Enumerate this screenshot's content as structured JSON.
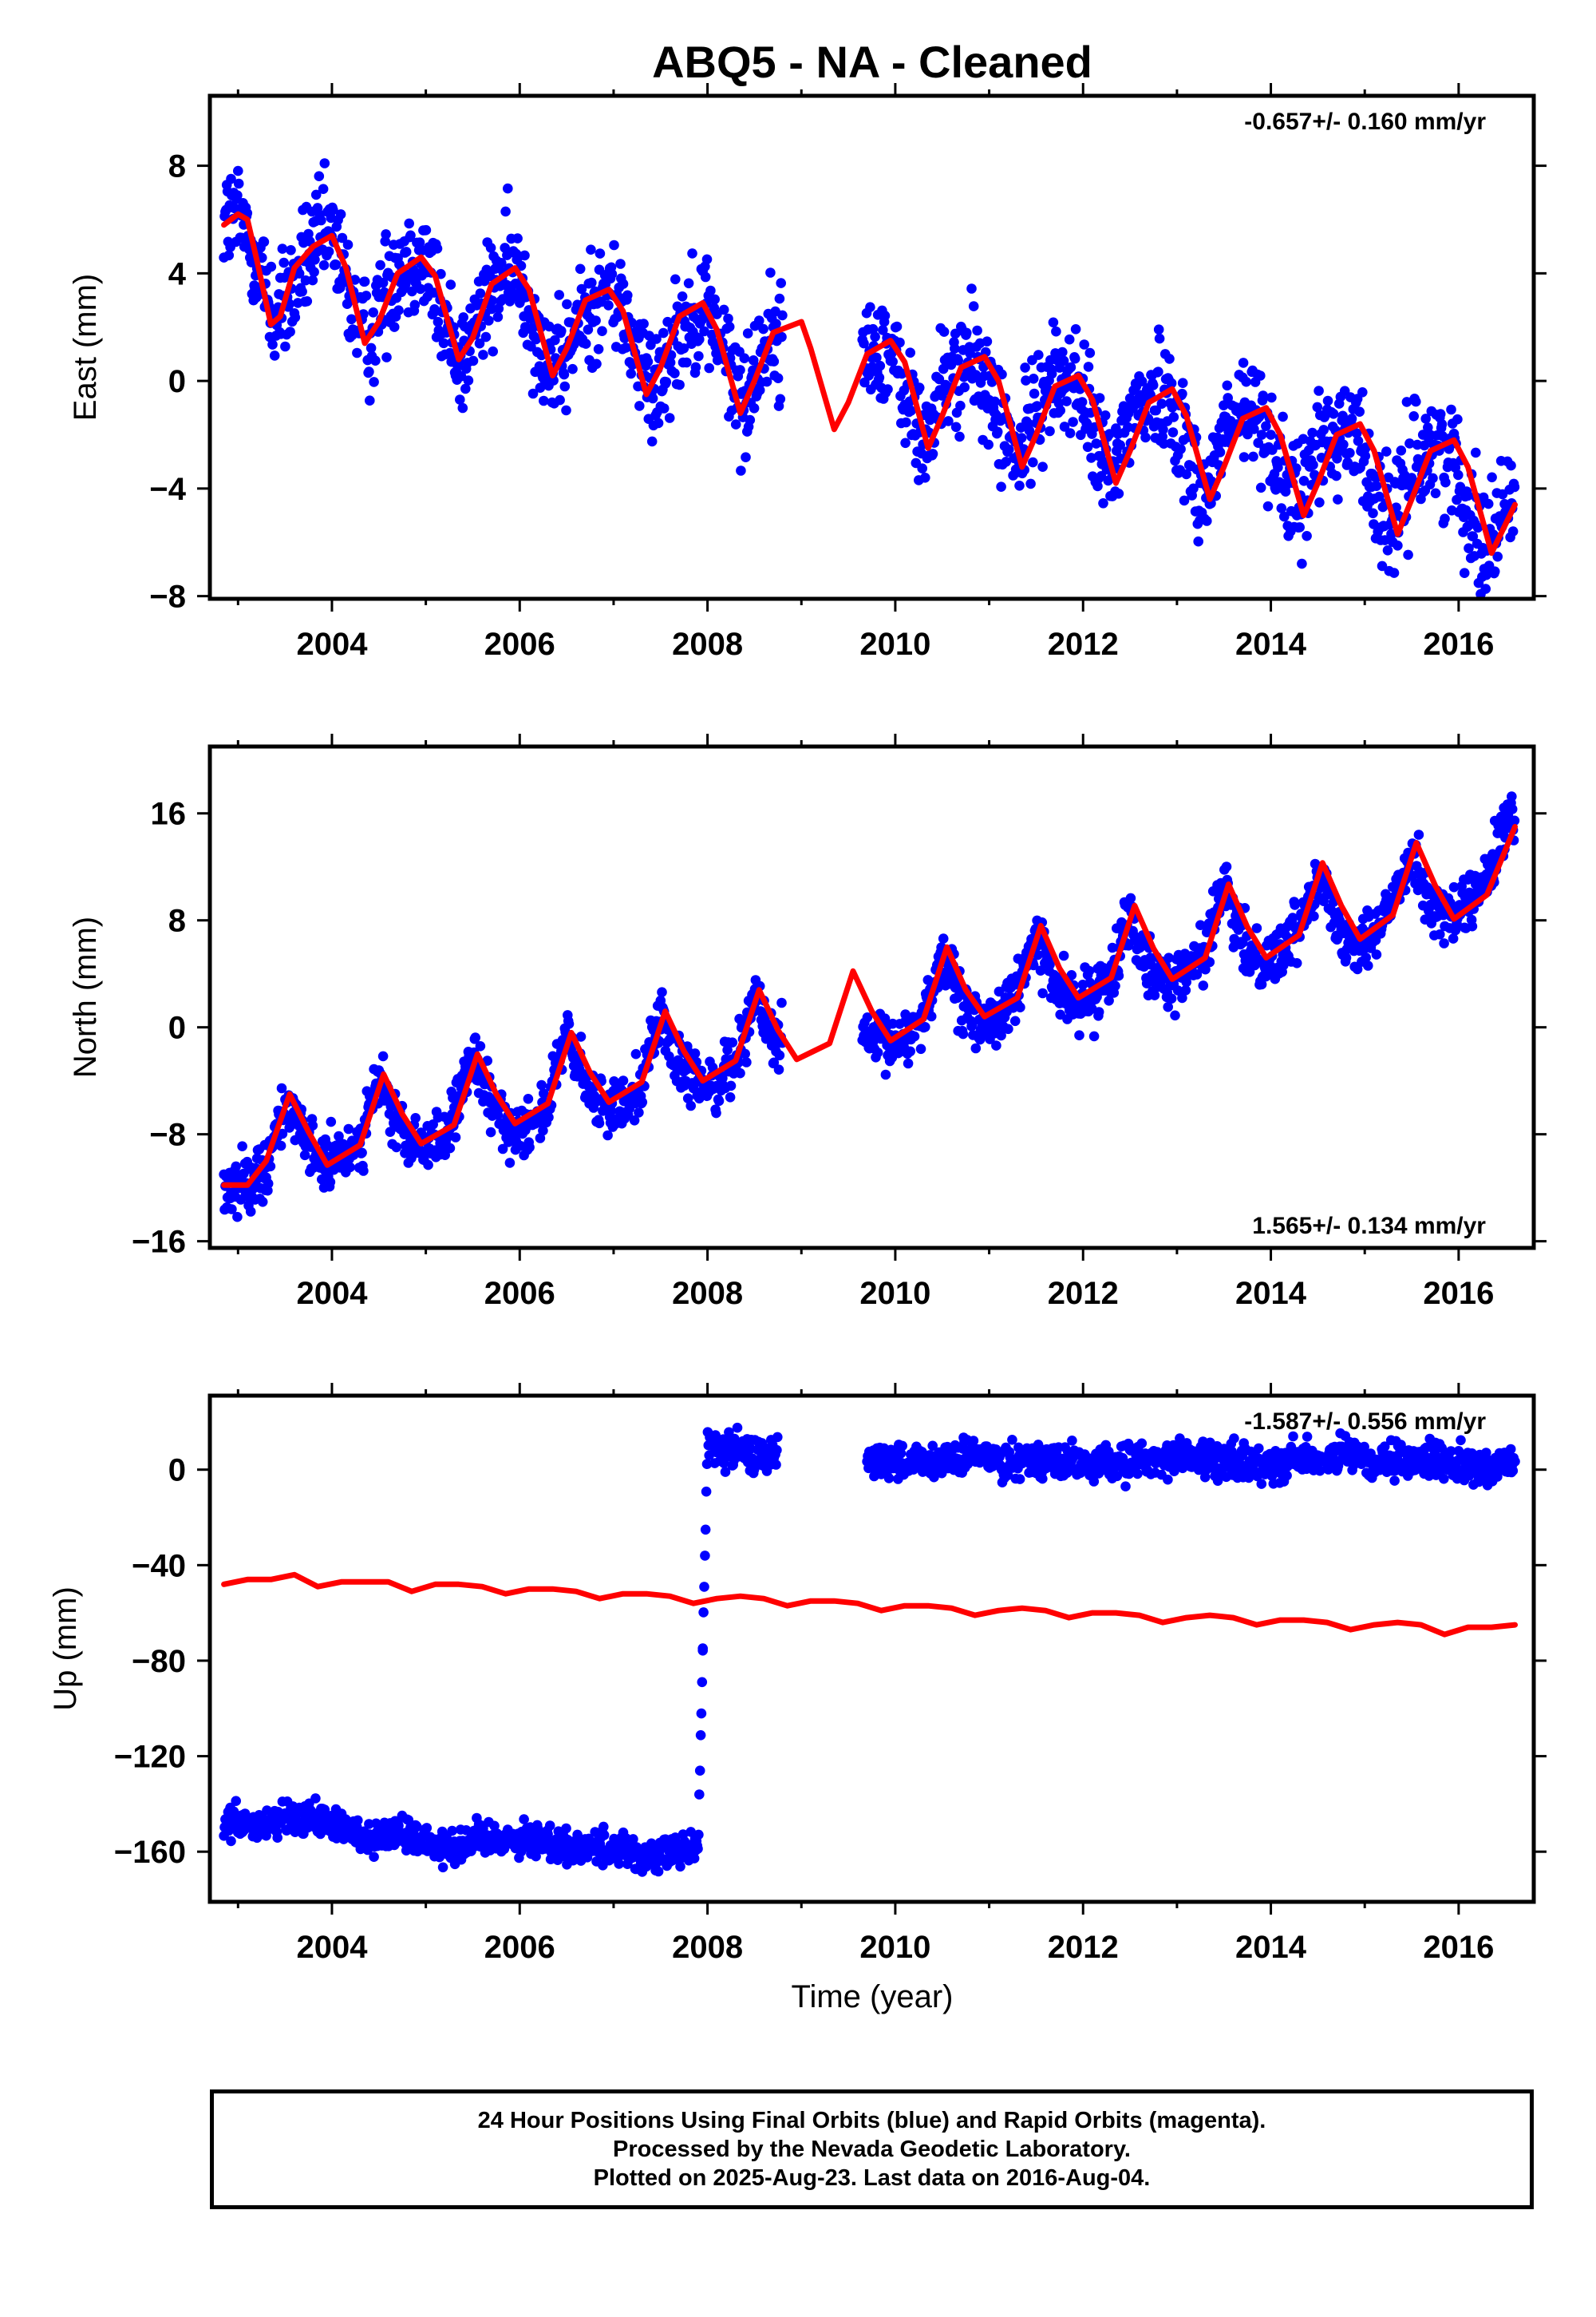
{
  "chart_data": [
    {
      "type": "scatter",
      "title": "ABQ5  - NA - Cleaned",
      "ylabel": "East (mm)",
      "xlabel": "",
      "rate_text": "-0.657+/- 0.160 mm/yr",
      "rate_position": "top-right",
      "xlim": [
        2002.7,
        2016.8
      ],
      "ylim": [
        -8.1,
        10.6
      ],
      "xticks": [
        "2004",
        "2006",
        "2008",
        "2010",
        "2012",
        "2014",
        "2016"
      ],
      "yticks": [
        "-8",
        "-4",
        "0",
        "4",
        "8"
      ],
      "series": [
        {
          "kind": "observations",
          "color": "#0000ff",
          "segments": [
            [
              2002.85,
              2008.8
            ],
            [
              2009.65,
              2016.6
            ]
          ],
          "x": [
            2002.9,
            2003.0,
            2003.2,
            2003.4,
            2003.6,
            2003.8,
            2004.0,
            2004.2,
            2004.4,
            2004.6,
            2004.8,
            2005.0,
            2005.2,
            2005.4,
            2005.6,
            2005.8,
            2006.0,
            2006.2,
            2006.4,
            2006.6,
            2006.8,
            2007.0,
            2007.2,
            2007.4,
            2007.6,
            2007.8,
            2008.0,
            2008.2,
            2008.4,
            2008.6,
            2009.7,
            2009.9,
            2010.1,
            2010.3,
            2010.5,
            2010.7,
            2010.9,
            2011.1,
            2011.3,
            2011.5,
            2011.7,
            2011.9,
            2012.1,
            2012.3,
            2012.5,
            2012.7,
            2012.9,
            2013.1,
            2013.3,
            2013.5,
            2013.7,
            2013.9,
            2014.1,
            2014.3,
            2014.5,
            2014.7,
            2014.9,
            2015.1,
            2015.3,
            2015.5,
            2015.7,
            2015.9,
            2016.1,
            2016.3,
            2016.5
          ],
          "y": [
            6.0,
            6.1,
            4.5,
            2.2,
            3.5,
            5.0,
            5.4,
            3.0,
            1.4,
            3.8,
            4.6,
            4.5,
            2.0,
            0.8,
            2.6,
            3.9,
            4.0,
            1.6,
            0.2,
            1.8,
            3.0,
            3.4,
            1.6,
            -0.5,
            1.2,
            2.5,
            2.8,
            0.8,
            -1.0,
            1.5,
            1.0,
            1.4,
            -0.5,
            -2.4,
            -0.2,
            0.7,
            0.5,
            -1.5,
            -3.1,
            -0.8,
            0.0,
            0.1,
            -1.8,
            -3.7,
            -1.2,
            -0.6,
            -0.4,
            -2.4,
            -4.4,
            -1.8,
            -1.3,
            -1.2,
            -3.4,
            -5.0,
            -2.4,
            -1.9,
            -1.9,
            -4.0,
            -5.7,
            -3.0,
            -2.5,
            -2.6,
            -4.6,
            -6.3,
            -4.6
          ],
          "spread": 2.0
        },
        {
          "kind": "model",
          "color": "#ff0000",
          "rate_mm_per_yr": -0.657,
          "x": [
            2002.85,
            2003.0,
            2003.1,
            2003.2,
            2003.35,
            2003.45,
            2003.6,
            2003.8,
            2004.0,
            2004.15,
            2004.35,
            2004.5,
            2004.7,
            2004.95,
            2005.1,
            2005.35,
            2005.5,
            2005.7,
            2005.95,
            2006.1,
            2006.35,
            2006.5,
            2006.7,
            2006.95,
            2007.1,
            2007.35,
            2007.5,
            2007.7,
            2007.95,
            2008.1,
            2008.35,
            2008.5,
            2008.7,
            2009.0,
            2009.1,
            2009.35,
            2009.5,
            2009.7,
            2009.95,
            2010.1,
            2010.35,
            2010.5,
            2010.7,
            2010.95,
            2011.1,
            2011.35,
            2011.5,
            2011.7,
            2011.95,
            2012.1,
            2012.35,
            2012.5,
            2012.7,
            2012.95,
            2013.1,
            2013.35,
            2013.5,
            2013.7,
            2013.95,
            2014.1,
            2014.35,
            2014.5,
            2014.7,
            2014.95,
            2015.1,
            2015.35,
            2015.5,
            2015.7,
            2015.95,
            2016.1,
            2016.35,
            2016.6
          ],
          "y": [
            5.8,
            6.2,
            6.0,
            4.5,
            2.1,
            2.4,
            4.2,
            5.0,
            5.4,
            4.2,
            1.4,
            2.2,
            4.0,
            4.6,
            3.9,
            0.8,
            1.6,
            3.6,
            4.2,
            3.4,
            0.2,
            1.2,
            3.0,
            3.4,
            2.6,
            -0.5,
            0.5,
            2.4,
            2.9,
            1.9,
            -1.2,
            0.0,
            1.8,
            2.2,
            1.2,
            -1.8,
            -0.8,
            1.0,
            1.5,
            0.7,
            -2.5,
            -1.3,
            0.5,
            0.9,
            0.0,
            -3.2,
            -2.0,
            -0.2,
            0.2,
            -0.7,
            -3.8,
            -2.6,
            -0.8,
            -0.3,
            -1.3,
            -4.4,
            -3.2,
            -1.4,
            -1.0,
            -2.0,
            -5.0,
            -3.8,
            -2.0,
            -1.6,
            -2.6,
            -5.7,
            -4.4,
            -2.6,
            -2.2,
            -3.2,
            -6.4,
            -4.6
          ]
        }
      ]
    },
    {
      "type": "scatter",
      "title": "",
      "ylabel": "North (mm)",
      "xlabel": "",
      "rate_text": "1.565+/- 0.134 mm/yr",
      "rate_position": "bottom-right",
      "xlim": [
        2002.7,
        2016.8
      ],
      "ylim": [
        -16.5,
        21.0
      ],
      "xticks": [
        "2004",
        "2006",
        "2008",
        "2010",
        "2012",
        "2014",
        "2016"
      ],
      "yticks": [
        "-16",
        "-8",
        "0",
        "8",
        "16"
      ],
      "series": [
        {
          "kind": "observations",
          "color": "#0000ff",
          "segments": [
            [
              2002.85,
              2008.8
            ],
            [
              2009.65,
              2016.6
            ]
          ],
          "x": [
            2002.9,
            2003.1,
            2003.3,
            2003.5,
            2003.7,
            2003.9,
            2004.1,
            2004.3,
            2004.5,
            2004.7,
            2004.9,
            2005.1,
            2005.3,
            2005.5,
            2005.7,
            2005.9,
            2006.1,
            2006.3,
            2006.5,
            2006.7,
            2006.9,
            2007.1,
            2007.3,
            2007.5,
            2007.7,
            2007.9,
            2008.1,
            2008.3,
            2008.5,
            2008.7,
            2009.7,
            2009.9,
            2010.1,
            2010.3,
            2010.5,
            2010.7,
            2010.9,
            2011.1,
            2011.3,
            2011.5,
            2011.7,
            2011.9,
            2012.1,
            2012.3,
            2012.5,
            2012.7,
            2012.9,
            2013.1,
            2013.3,
            2013.5,
            2013.7,
            2013.9,
            2014.1,
            2014.3,
            2014.5,
            2014.7,
            2014.9,
            2015.1,
            2015.3,
            2015.5,
            2015.7,
            2015.9,
            2016.1,
            2016.3,
            2016.5
          ],
          "y": [
            -12.0,
            -11.5,
            -10.5,
            -5.5,
            -8.5,
            -10.3,
            -9.8,
            -8.5,
            -3.8,
            -7.5,
            -9.0,
            -8.5,
            -7.0,
            -2.2,
            -6.0,
            -7.6,
            -7.2,
            -5.8,
            -0.6,
            -4.5,
            -6.0,
            -5.5,
            -4.0,
            1.0,
            -3.0,
            -4.4,
            -4.0,
            -2.5,
            2.5,
            -1.0,
            -1.0,
            -1.4,
            -0.8,
            0.8,
            5.5,
            1.5,
            0.3,
            0.8,
            2.5,
            7.0,
            3.0,
            1.8,
            2.2,
            4.0,
            8.8,
            4.5,
            3.5,
            4.0,
            5.8,
            10.5,
            6.0,
            5.0,
            5.6,
            7.5,
            12.0,
            7.5,
            6.5,
            7.2,
            9.0,
            13.5,
            9.0,
            8.2,
            9.0,
            11.0,
            15.0
          ],
          "spread": 2.0
        },
        {
          "kind": "model",
          "color": "#ff0000",
          "rate_mm_per_yr": 1.565,
          "x": [
            2002.85,
            2003.1,
            2003.3,
            2003.55,
            2003.75,
            2003.95,
            2004.3,
            2004.55,
            2004.75,
            2004.95,
            2005.3,
            2005.55,
            2005.75,
            2005.95,
            2006.3,
            2006.55,
            2006.75,
            2006.95,
            2007.3,
            2007.55,
            2007.75,
            2007.95,
            2008.3,
            2008.55,
            2008.75,
            2008.95,
            2009.3,
            2009.55,
            2009.75,
            2009.95,
            2010.3,
            2010.55,
            2010.75,
            2010.95,
            2011.3,
            2011.55,
            2011.75,
            2011.95,
            2012.3,
            2012.55,
            2012.75,
            2012.95,
            2013.3,
            2013.55,
            2013.75,
            2013.95,
            2014.3,
            2014.55,
            2014.75,
            2014.95,
            2015.3,
            2015.55,
            2015.75,
            2015.95,
            2016.3,
            2016.6
          ],
          "y": [
            -11.8,
            -11.8,
            -10.0,
            -5.0,
            -7.8,
            -10.3,
            -8.8,
            -3.5,
            -6.5,
            -8.7,
            -7.3,
            -2.0,
            -5.0,
            -7.2,
            -5.7,
            -0.4,
            -3.4,
            -5.6,
            -4.1,
            1.2,
            -1.8,
            -4.0,
            -2.5,
            2.8,
            -0.2,
            -2.4,
            -1.2,
            4.2,
            1.2,
            -1.0,
            0.6,
            6.0,
            2.8,
            0.8,
            2.2,
            7.6,
            4.4,
            2.2,
            3.7,
            9.1,
            5.9,
            3.6,
            5.2,
            10.7,
            7.5,
            5.2,
            6.9,
            12.3,
            9.1,
            6.6,
            8.4,
            13.8,
            10.6,
            8.1,
            9.9,
            15.0
          ]
        }
      ]
    },
    {
      "type": "scatter",
      "title": "",
      "ylabel": "Up (mm)",
      "xlabel": "Time (year)",
      "rate_text": "-1.587+/- 0.556 mm/yr",
      "rate_position": "top-right",
      "xlim": [
        2002.7,
        2016.8
      ],
      "ylim": [
        -181,
        31
      ],
      "xticks": [
        "2004",
        "2006",
        "2008",
        "2010",
        "2012",
        "2014",
        "2016"
      ],
      "yticks": [
        "-160",
        "-120",
        "-80",
        "-40",
        "0"
      ],
      "series": [
        {
          "kind": "observations",
          "color": "#0000ff",
          "segments": [
            [
              2002.85,
              2007.95
            ],
            [
              2007.95,
              2008.75
            ],
            [
              2009.7,
              2016.6
            ]
          ],
          "x": [
            2002.9,
            2003.2,
            2003.5,
            2003.8,
            2004.1,
            2004.4,
            2004.7,
            2005.0,
            2005.3,
            2005.6,
            2005.9,
            2006.2,
            2006.5,
            2006.8,
            2007.1,
            2007.4,
            2007.7,
            2007.9,
            2008.0,
            2008.2,
            2008.4,
            2008.6,
            2009.7,
            2010.0,
            2010.3,
            2010.6,
            2010.9,
            2011.2,
            2011.5,
            2011.8,
            2012.1,
            2012.4,
            2012.7,
            2013.0,
            2013.3,
            2013.6,
            2013.9,
            2014.2,
            2014.5,
            2014.8,
            2015.1,
            2015.4,
            2015.7,
            2016.0,
            2016.3,
            2016.5
          ],
          "y": [
            -148,
            -150,
            -147,
            -146,
            -150,
            -154,
            -152,
            -155,
            -158,
            -154,
            -154,
            -155,
            -158,
            -158,
            -159,
            -163,
            -160,
            -158,
            10,
            8,
            7,
            6,
            6,
            3,
            2,
            4,
            6,
            4,
            5,
            3,
            2,
            3,
            4,
            6,
            5,
            3,
            2,
            4,
            5,
            6,
            2,
            3,
            5,
            2,
            0,
            4
          ],
          "spread": 7
        },
        {
          "kind": "model",
          "color": "#ff0000",
          "rate_mm_per_yr": -1.587,
          "x": [
            2002.85,
            2003.1,
            2003.35,
            2003.6,
            2003.85,
            2004.1,
            2004.35,
            2004.6,
            2004.85,
            2005.1,
            2005.35,
            2005.6,
            2005.85,
            2006.1,
            2006.35,
            2006.6,
            2006.85,
            2007.1,
            2007.35,
            2007.6,
            2007.85,
            2008.1,
            2008.35,
            2008.6,
            2008.85,
            2009.1,
            2009.35,
            2009.6,
            2009.85,
            2010.1,
            2010.35,
            2010.6,
            2010.85,
            2011.1,
            2011.35,
            2011.6,
            2011.85,
            2012.1,
            2012.35,
            2012.6,
            2012.85,
            2013.1,
            2013.35,
            2013.6,
            2013.85,
            2014.1,
            2014.35,
            2014.6,
            2014.85,
            2015.1,
            2015.35,
            2015.6,
            2015.85,
            2016.1,
            2016.35,
            2016.6
          ],
          "y": [
            -48,
            -46,
            -46,
            -44,
            -49,
            -47,
            -47,
            -47,
            -51,
            -48,
            -48,
            -49,
            -52,
            -50,
            -50,
            -51,
            -54,
            -52,
            -52,
            -53,
            -56,
            -54,
            -53,
            -54,
            -57,
            -55,
            -55,
            -56,
            -59,
            -57,
            -57,
            -58,
            -61,
            -59,
            -58,
            -59,
            -62,
            -60,
            -60,
            -61,
            -64,
            -62,
            -61,
            -62,
            -65,
            -63,
            -63,
            -64,
            -67,
            -65,
            -64,
            -65,
            -69,
            -66,
            -66,
            -65
          ]
        }
      ]
    }
  ],
  "caption": {
    "line1": "24 Hour Positions Using Final Orbits (blue) and Rapid Orbits (magenta).",
    "line2": "Processed by the Nevada Geodetic Laboratory.",
    "line3": "Plotted on 2025-Aug-23. Last data on 2016-Aug-04."
  }
}
